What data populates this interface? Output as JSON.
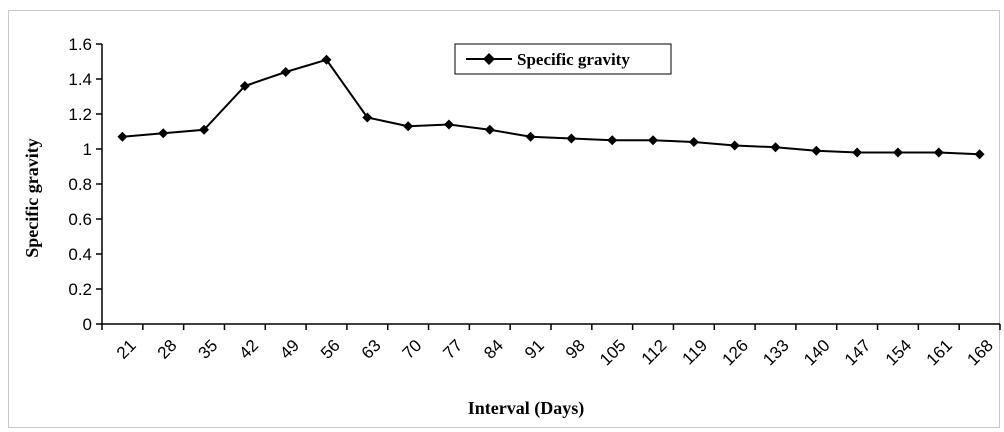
{
  "chart_data": {
    "type": "line",
    "title": "",
    "xlabel": "Interval (Days)",
    "ylabel": "Specific gravity",
    "x": [
      21,
      28,
      35,
      42,
      49,
      56,
      63,
      70,
      77,
      84,
      91,
      98,
      105,
      112,
      119,
      126,
      133,
      140,
      147,
      154,
      161,
      168
    ],
    "series": [
      {
        "name": "Specific gravity",
        "values": [
          1.07,
          1.09,
          1.11,
          1.36,
          1.44,
          1.51,
          1.18,
          1.13,
          1.14,
          1.11,
          1.07,
          1.06,
          1.05,
          1.05,
          1.04,
          1.02,
          1.01,
          0.99,
          0.98,
          0.98,
          0.98,
          0.97
        ],
        "color": "#000000",
        "marker": "diamond"
      }
    ],
    "ylim": [
      0,
      1.6
    ],
    "yticks": [
      "0",
      "0.2",
      "0.4",
      "0.6",
      "0.8",
      "1",
      "1.2",
      "1.4",
      "1.6"
    ],
    "grid": false,
    "legend_position": "top-center"
  }
}
